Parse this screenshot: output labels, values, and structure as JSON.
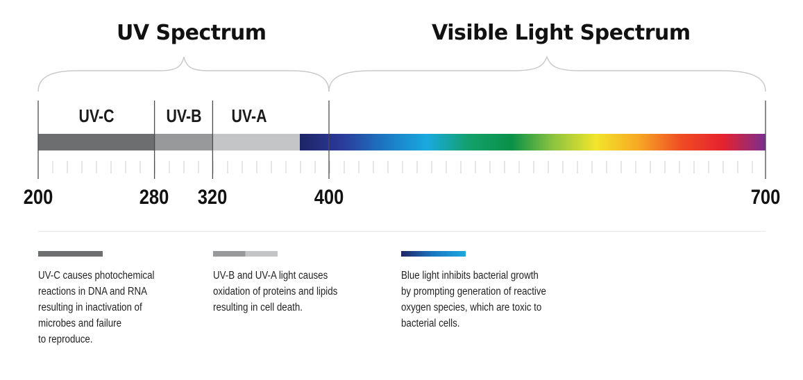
{
  "headings": {
    "uv": "UV Spectrum",
    "visible": "Visible Light Spectrum"
  },
  "bands": [
    {
      "name": "UV-C",
      "from_nm": 200,
      "to_nm": 280,
      "color": "#6d6e70"
    },
    {
      "name": "UV-B",
      "from_nm": 280,
      "to_nm": 320,
      "color": "#98999b"
    },
    {
      "name": "UV-A",
      "from_nm": 320,
      "to_nm": 400,
      "color": "#c4c5c7"
    }
  ],
  "axis": {
    "min_nm": 200,
    "max_nm": 700,
    "labels": [
      "200",
      "280",
      "320",
      "400",
      "700"
    ]
  },
  "visible_gradient": [
    "#1f2465",
    "#2b3b9a",
    "#1c77c2",
    "#1aa9df",
    "#13a06b",
    "#0a9148",
    "#8dc43f",
    "#f2e52b",
    "#f7a824",
    "#ef4d23",
    "#e5222f",
    "#7a2e8f"
  ],
  "legend": [
    {
      "swatch_colors": [
        "#6d6e70"
      ],
      "lines": [
        "UV-C causes photochemical",
        "reactions in DNA and RNA",
        "resulting in inactivation of",
        "microbes and failure",
        "to reproduce."
      ]
    },
    {
      "swatch_colors": [
        "#98999b",
        "#c4c5c7"
      ],
      "lines": [
        "UV-B and UV-A light causes",
        "oxidation of proteins and lipids",
        "resulting in cell death."
      ]
    },
    {
      "swatch_colors": [
        "#1f2465",
        "#1c77c2",
        "#1aa9df"
      ],
      "lines": [
        "Blue light inhibits bacterial growth",
        "by prompting generation of reactive",
        "oxygen species, which are toxic to",
        "bacterial cells."
      ]
    }
  ]
}
